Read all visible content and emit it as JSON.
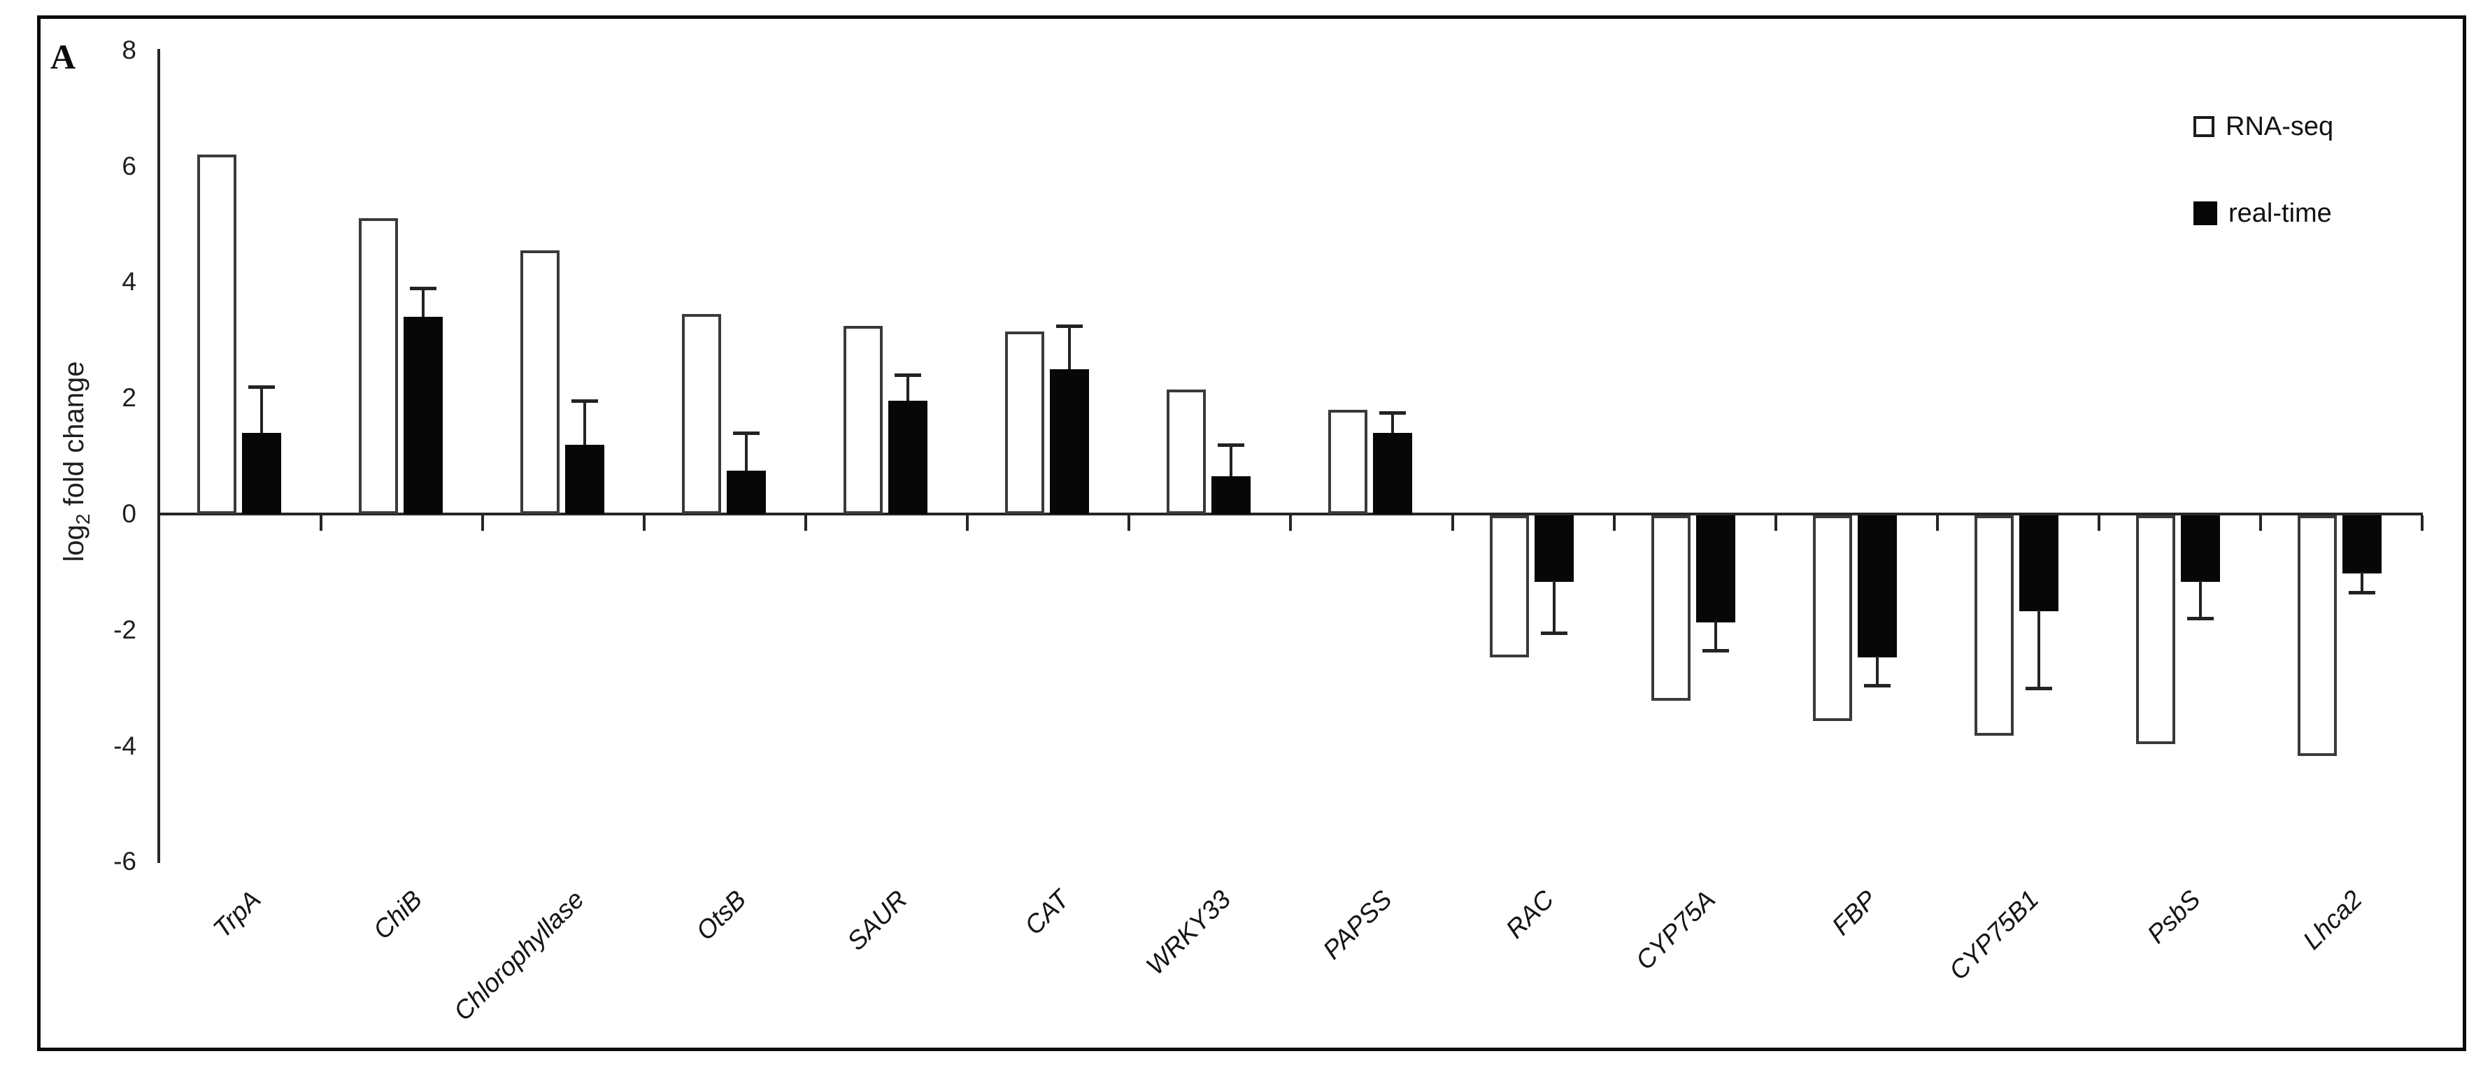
{
  "panel_label": "A",
  "legend": {
    "rna_seq_label": "RNA-seq",
    "real_time_label": "real-time"
  },
  "y_axis_title": {
    "pre": "log",
    "sub": "2",
    "post": " fold change"
  },
  "colors": {
    "white_bar_outline": "#3a3a3a",
    "black_bar_fill": "#070707",
    "axis": "#262626",
    "figure_border": "#0b0b0b"
  },
  "chart_data": {
    "type": "bar",
    "title": "",
    "xlabel": "",
    "ylabel": "log2 fold change",
    "ylim": [
      -6,
      8
    ],
    "yticks": [
      8,
      6,
      4,
      2,
      0,
      -2,
      -4,
      -6
    ],
    "grid": false,
    "legend_position": "top-right",
    "categories": [
      "TrpA",
      "ChiB",
      "Chlorophyllase",
      "OtsB",
      "SAUR",
      "CAT",
      "WRKY33",
      "PAPSS",
      "RAC",
      "CYP75A",
      "FBP",
      "CYP75B1",
      "PsbS",
      "Lhca2"
    ],
    "series": [
      {
        "name": "RNA-seq",
        "style": "open",
        "values": [
          6.2,
          5.1,
          4.55,
          3.45,
          3.25,
          3.15,
          2.15,
          1.8,
          -2.45,
          -3.2,
          -3.55,
          -3.8,
          -3.95,
          -4.15
        ]
      },
      {
        "name": "real-time",
        "style": "filled",
        "values": [
          1.4,
          3.4,
          1.2,
          0.75,
          1.95,
          2.5,
          0.65,
          1.4,
          -1.15,
          -1.85,
          -2.45,
          -1.65,
          -1.15,
          -1.0
        ],
        "errors": [
          0.8,
          0.5,
          0.75,
          0.65,
          0.45,
          0.75,
          0.55,
          0.35,
          0.9,
          0.5,
          0.5,
          1.35,
          0.65,
          0.35
        ]
      }
    ]
  }
}
